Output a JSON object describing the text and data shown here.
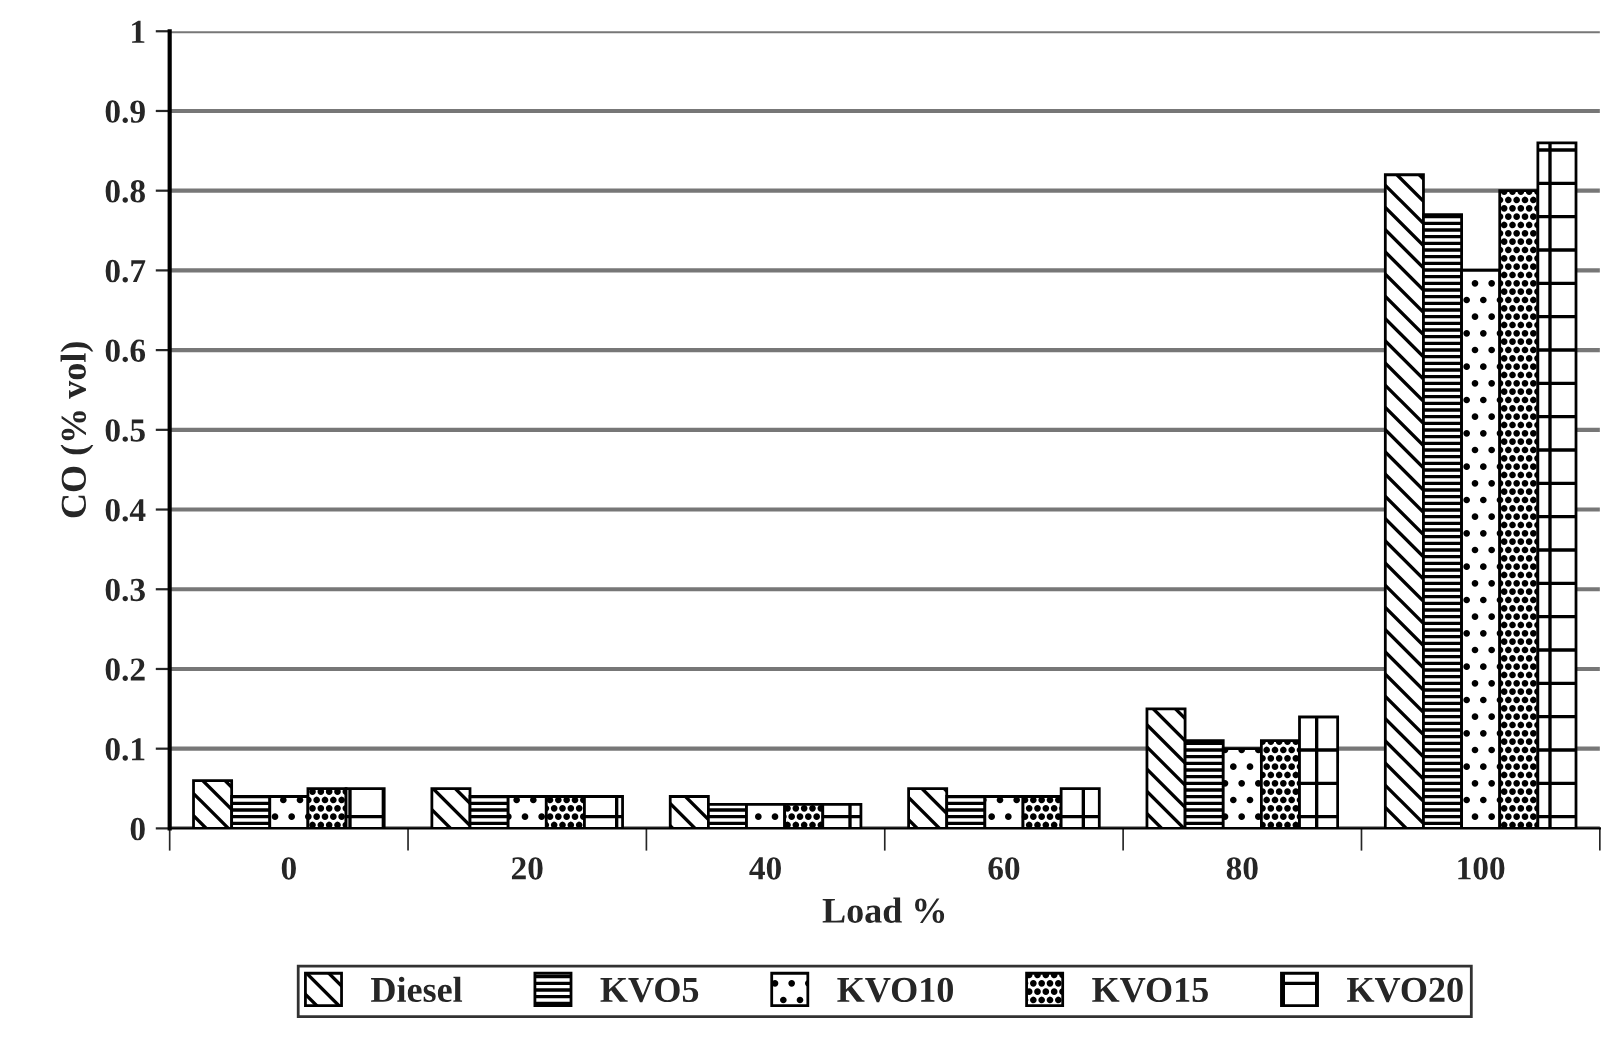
{
  "chart_data": {
    "type": "bar",
    "xlabel": "Load %",
    "ylabel": "CO (% vol)",
    "categories": [
      "0",
      "20",
      "40",
      "60",
      "80",
      "100"
    ],
    "series": [
      {
        "name": "Diesel",
        "color": "#000000",
        "values": [
          0.06,
          0.05,
          0.04,
          0.05,
          0.15,
          0.82
        ]
      },
      {
        "name": "KVO5",
        "color": "#000000",
        "values": [
          0.04,
          0.04,
          0.03,
          0.04,
          0.11,
          0.77
        ]
      },
      {
        "name": "KVO10",
        "color": "#000000",
        "values": [
          0.04,
          0.04,
          0.03,
          0.04,
          0.1,
          0.7
        ]
      },
      {
        "name": "KVO15",
        "color": "#000000",
        "values": [
          0.05,
          0.04,
          0.03,
          0.04,
          0.11,
          0.8
        ]
      },
      {
        "name": "KVO20",
        "color": "#000000",
        "values": [
          0.05,
          0.04,
          0.03,
          0.05,
          0.14,
          0.86
        ]
      }
    ],
    "ylim": [
      0,
      1
    ],
    "yticks": [
      0,
      0.1,
      0.2,
      0.3,
      0.4,
      0.5,
      0.6,
      0.7,
      0.8,
      0.9,
      1
    ],
    "grid": "y",
    "legend": "bottom"
  }
}
